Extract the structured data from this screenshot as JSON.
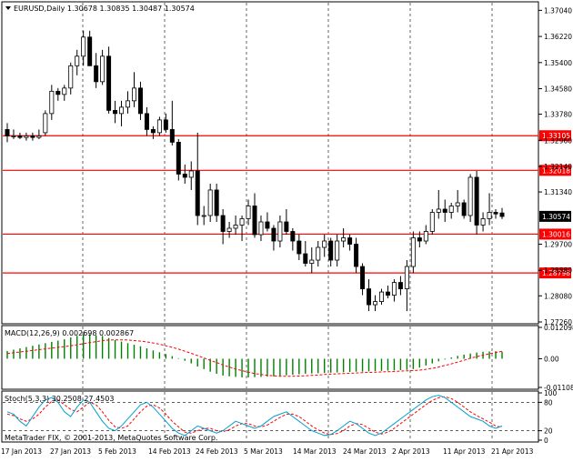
{
  "main": {
    "header": "EURUSD,Daily  1.30678 1.30835 1.30487 1.30574",
    "price_levels": [
      "1.37040",
      "1.36220",
      "1.35400",
      "1.34580",
      "1.33780",
      "1.32960",
      "1.32140",
      "1.31340",
      "1.30574",
      "1.29700",
      "1.28880",
      "1.28080",
      "1.27260"
    ],
    "h_lines": [
      "1.33105",
      "1.32018",
      "1.30016",
      "1.28798"
    ],
    "current_price": "1.30574",
    "colors": {
      "hline": "#ff0000",
      "candle": "#000000",
      "grid": "#000000"
    }
  },
  "macd": {
    "label": "MACD(12,26,9) 0.002698 0.002867",
    "levels": [
      "0.012098",
      "0.00",
      "-0.011082"
    ],
    "colors": {
      "histogram": "#008000",
      "signal": "#ff0000"
    }
  },
  "stoch": {
    "label": "Stoch(5,3,3) 30.2508 27.4503",
    "levels": [
      "100",
      "80",
      "20",
      "0"
    ],
    "colors": {
      "main": "#00a0d0",
      "signal": "#ff0000"
    }
  },
  "footer": {
    "copyright": "MetaTrader FIX, © 2001-2013, MetaQuotes Software Corp."
  },
  "dates": [
    "17 Jan 2013",
    "27 Jan 2013",
    "5 Feb 2013",
    "14 Feb 2013",
    "24 Feb 2013",
    "5 Mar 2013",
    "14 Mar 2013",
    "24 Mar 2013",
    "2 Apr 2013",
    "11 Apr 2013",
    "21 Apr 2013"
  ],
  "chart_data": {
    "type": "candlestick",
    "candles": [
      {
        "o": 1.333,
        "h": 1.335,
        "l": 1.329,
        "c": 1.331
      },
      {
        "o": 1.331,
        "h": 1.333,
        "l": 1.33,
        "c": 1.331
      },
      {
        "o": 1.331,
        "h": 1.332,
        "l": 1.33,
        "c": 1.3305
      },
      {
        "o": 1.3305,
        "h": 1.332,
        "l": 1.3295,
        "c": 1.331
      },
      {
        "o": 1.331,
        "h": 1.332,
        "l": 1.3295,
        "c": 1.3305
      },
      {
        "o": 1.3305,
        "h": 1.333,
        "l": 1.33,
        "c": 1.331
      },
      {
        "o": 1.332,
        "h": 1.339,
        "l": 1.331,
        "c": 1.338
      },
      {
        "o": 1.338,
        "h": 1.347,
        "l": 1.336,
        "c": 1.345
      },
      {
        "o": 1.345,
        "h": 1.346,
        "l": 1.342,
        "c": 1.344
      },
      {
        "o": 1.344,
        "h": 1.347,
        "l": 1.342,
        "c": 1.346
      },
      {
        "o": 1.346,
        "h": 1.354,
        "l": 1.344,
        "c": 1.353
      },
      {
        "o": 1.353,
        "h": 1.358,
        "l": 1.35,
        "c": 1.356
      },
      {
        "o": 1.356,
        "h": 1.364,
        "l": 1.353,
        "c": 1.362
      },
      {
        "o": 1.362,
        "h": 1.364,
        "l": 1.353,
        "c": 1.353
      },
      {
        "o": 1.353,
        "h": 1.357,
        "l": 1.346,
        "c": 1.348
      },
      {
        "o": 1.348,
        "h": 1.358,
        "l": 1.347,
        "c": 1.356
      },
      {
        "o": 1.356,
        "h": 1.359,
        "l": 1.338,
        "c": 1.339
      },
      {
        "o": 1.339,
        "h": 1.342,
        "l": 1.335,
        "c": 1.338
      },
      {
        "o": 1.338,
        "h": 1.342,
        "l": 1.334,
        "c": 1.34
      },
      {
        "o": 1.34,
        "h": 1.345,
        "l": 1.338,
        "c": 1.342
      },
      {
        "o": 1.342,
        "h": 1.351,
        "l": 1.34,
        "c": 1.346
      },
      {
        "o": 1.346,
        "h": 1.348,
        "l": 1.336,
        "c": 1.338
      },
      {
        "o": 1.338,
        "h": 1.34,
        "l": 1.331,
        "c": 1.333
      },
      {
        "o": 1.333,
        "h": 1.334,
        "l": 1.33,
        "c": 1.332
      },
      {
        "o": 1.332,
        "h": 1.337,
        "l": 1.331,
        "c": 1.336
      },
      {
        "o": 1.336,
        "h": 1.338,
        "l": 1.332,
        "c": 1.333
      },
      {
        "o": 1.333,
        "h": 1.342,
        "l": 1.328,
        "c": 1.329
      },
      {
        "o": 1.329,
        "h": 1.33,
        "l": 1.317,
        "c": 1.319
      },
      {
        "o": 1.319,
        "h": 1.322,
        "l": 1.316,
        "c": 1.318
      },
      {
        "o": 1.318,
        "h": 1.323,
        "l": 1.314,
        "c": 1.32
      },
      {
        "o": 1.32,
        "h": 1.332,
        "l": 1.303,
        "c": 1.306
      },
      {
        "o": 1.306,
        "h": 1.309,
        "l": 1.303,
        "c": 1.306
      },
      {
        "o": 1.306,
        "h": 1.316,
        "l": 1.304,
        "c": 1.314
      },
      {
        "o": 1.314,
        "h": 1.316,
        "l": 1.304,
        "c": 1.306
      },
      {
        "o": 1.306,
        "h": 1.308,
        "l": 1.297,
        "c": 1.301
      },
      {
        "o": 1.301,
        "h": 1.304,
        "l": 1.299,
        "c": 1.302
      },
      {
        "o": 1.302,
        "h": 1.306,
        "l": 1.3,
        "c": 1.303
      },
      {
        "o": 1.303,
        "h": 1.306,
        "l": 1.298,
        "c": 1.305
      },
      {
        "o": 1.305,
        "h": 1.311,
        "l": 1.303,
        "c": 1.309
      },
      {
        "o": 1.309,
        "h": 1.313,
        "l": 1.299,
        "c": 1.3
      },
      {
        "o": 1.3,
        "h": 1.306,
        "l": 1.298,
        "c": 1.304
      },
      {
        "o": 1.304,
        "h": 1.307,
        "l": 1.301,
        "c": 1.302
      },
      {
        "o": 1.302,
        "h": 1.303,
        "l": 1.295,
        "c": 1.298
      },
      {
        "o": 1.298,
        "h": 1.306,
        "l": 1.296,
        "c": 1.304
      },
      {
        "o": 1.304,
        "h": 1.308,
        "l": 1.3,
        "c": 1.301
      },
      {
        "o": 1.301,
        "h": 1.302,
        "l": 1.295,
        "c": 1.298
      },
      {
        "o": 1.298,
        "h": 1.3,
        "l": 1.292,
        "c": 1.294
      },
      {
        "o": 1.294,
        "h": 1.298,
        "l": 1.29,
        "c": 1.291
      },
      {
        "o": 1.291,
        "h": 1.296,
        "l": 1.288,
        "c": 1.292
      },
      {
        "o": 1.292,
        "h": 1.298,
        "l": 1.29,
        "c": 1.296
      },
      {
        "o": 1.296,
        "h": 1.3,
        "l": 1.293,
        "c": 1.298
      },
      {
        "o": 1.298,
        "h": 1.299,
        "l": 1.29,
        "c": 1.292
      },
      {
        "o": 1.292,
        "h": 1.3,
        "l": 1.29,
        "c": 1.298
      },
      {
        "o": 1.298,
        "h": 1.302,
        "l": 1.296,
        "c": 1.299
      },
      {
        "o": 1.299,
        "h": 1.3,
        "l": 1.295,
        "c": 1.297
      },
      {
        "o": 1.297,
        "h": 1.299,
        "l": 1.288,
        "c": 1.29
      },
      {
        "o": 1.29,
        "h": 1.291,
        "l": 1.281,
        "c": 1.283
      },
      {
        "o": 1.283,
        "h": 1.286,
        "l": 1.276,
        "c": 1.278
      },
      {
        "o": 1.278,
        "h": 1.281,
        "l": 1.276,
        "c": 1.279
      },
      {
        "o": 1.279,
        "h": 1.283,
        "l": 1.278,
        "c": 1.282
      },
      {
        "o": 1.282,
        "h": 1.284,
        "l": 1.28,
        "c": 1.281
      },
      {
        "o": 1.281,
        "h": 1.286,
        "l": 1.279,
        "c": 1.285
      },
      {
        "o": 1.285,
        "h": 1.287,
        "l": 1.281,
        "c": 1.283
      },
      {
        "o": 1.283,
        "h": 1.292,
        "l": 1.276,
        "c": 1.29
      },
      {
        "o": 1.29,
        "h": 1.301,
        "l": 1.288,
        "c": 1.299
      },
      {
        "o": 1.299,
        "h": 1.301,
        "l": 1.296,
        "c": 1.298
      },
      {
        "o": 1.298,
        "h": 1.303,
        "l": 1.297,
        "c": 1.301
      },
      {
        "o": 1.301,
        "h": 1.308,
        "l": 1.3,
        "c": 1.307
      },
      {
        "o": 1.307,
        "h": 1.314,
        "l": 1.305,
        "c": 1.308
      },
      {
        "o": 1.308,
        "h": 1.311,
        "l": 1.304,
        "c": 1.307
      },
      {
        "o": 1.307,
        "h": 1.31,
        "l": 1.305,
        "c": 1.309
      },
      {
        "o": 1.309,
        "h": 1.314,
        "l": 1.307,
        "c": 1.31
      },
      {
        "o": 1.31,
        "h": 1.311,
        "l": 1.305,
        "c": 1.306
      },
      {
        "o": 1.306,
        "h": 1.319,
        "l": 1.304,
        "c": 1.318
      },
      {
        "o": 1.318,
        "h": 1.32,
        "l": 1.3,
        "c": 1.303
      },
      {
        "o": 1.303,
        "h": 1.307,
        "l": 1.301,
        "c": 1.305
      },
      {
        "o": 1.305,
        "h": 1.313,
        "l": 1.303,
        "c": 1.307
      },
      {
        "o": 1.307,
        "h": 1.308,
        "l": 1.305,
        "c": 1.3065
      },
      {
        "o": 1.3068,
        "h": 1.3084,
        "l": 1.3049,
        "c": 1.3057
      }
    ],
    "y_range": [
      1.2726,
      1.3725
    ],
    "macd_hist": [
      0.003,
      0.0035,
      0.004,
      0.0045,
      0.005,
      0.0055,
      0.006,
      0.0065,
      0.007,
      0.0075,
      0.0082,
      0.0088,
      0.0094,
      0.0095,
      0.009,
      0.0088,
      0.008,
      0.0072,
      0.0066,
      0.006,
      0.0054,
      0.0048,
      0.004,
      0.0032,
      0.0025,
      0.0018,
      0.001,
      0.0002,
      -0.0008,
      -0.0018,
      -0.003,
      -0.004,
      -0.005,
      -0.0058,
      -0.0065,
      -0.0068,
      -0.007,
      -0.0072,
      -0.0072,
      -0.0071,
      -0.007,
      -0.0069,
      -0.0068,
      -0.0066,
      -0.0064,
      -0.0062,
      -0.006,
      -0.0058,
      -0.0057,
      -0.0056,
      -0.0055,
      -0.0054,
      -0.0053,
      -0.0052,
      -0.0051,
      -0.005,
      -0.005,
      -0.0049,
      -0.0048,
      -0.0047,
      -0.0046,
      -0.0045,
      -0.0044,
      -0.0043,
      -0.004,
      -0.0034,
      -0.0026,
      -0.0018,
      -0.001,
      -0.0003,
      0.0005,
      0.0011,
      0.0016,
      0.002,
      0.0024,
      0.0027,
      0.0028,
      0.0029,
      0.0027
    ],
    "macd_signal": [
      0.002,
      0.0023,
      0.0026,
      0.0029,
      0.0032,
      0.0035,
      0.0038,
      0.0041,
      0.0044,
      0.0047,
      0.005,
      0.0054,
      0.0058,
      0.0062,
      0.0066,
      0.007,
      0.0072,
      0.0073,
      0.0073,
      0.0072,
      0.007,
      0.0068,
      0.0065,
      0.0061,
      0.0056,
      0.005,
      0.0044,
      0.0037,
      0.0029,
      0.0021,
      0.0012,
      0.0003,
      -0.0006,
      -0.0015,
      -0.0024,
      -0.0032,
      -0.004,
      -0.0046,
      -0.0052,
      -0.0057,
      -0.0061,
      -0.0064,
      -0.0066,
      -0.0068,
      -0.0068,
      -0.0068,
      -0.0067,
      -0.0066,
      -0.0064,
      -0.0063,
      -0.0061,
      -0.006,
      -0.0058,
      -0.0057,
      -0.0056,
      -0.0055,
      -0.0054,
      -0.0053,
      -0.0052,
      -0.0051,
      -0.005,
      -0.0049,
      -0.0048,
      -0.0047,
      -0.0046,
      -0.0044,
      -0.0041,
      -0.0037,
      -0.0032,
      -0.0026,
      -0.002,
      -0.0013,
      -0.0006,
      0.0002,
      0.0008,
      0.0014,
      0.0019,
      0.0024,
      0.0029
    ],
    "macd_range": [
      -0.011082,
      0.012098
    ],
    "stoch_main": [
      60,
      55,
      40,
      30,
      50,
      70,
      85,
      90,
      80,
      60,
      50,
      70,
      85,
      80,
      60,
      40,
      25,
      20,
      30,
      45,
      60,
      75,
      80,
      70,
      55,
      40,
      25,
      15,
      10,
      20,
      30,
      25,
      20,
      15,
      20,
      30,
      40,
      35,
      30,
      25,
      30,
      40,
      50,
      55,
      60,
      50,
      40,
      30,
      20,
      15,
      10,
      12,
      20,
      30,
      40,
      35,
      25,
      15,
      10,
      15,
      25,
      35,
      45,
      55,
      65,
      75,
      85,
      92,
      95,
      90,
      80,
      70,
      60,
      50,
      45,
      40,
      30,
      25,
      30
    ],
    "stoch_signal": [
      55,
      52,
      45,
      40,
      45,
      55,
      70,
      82,
      85,
      75,
      65,
      60,
      70,
      80,
      75,
      60,
      42,
      28,
      25,
      30,
      45,
      60,
      72,
      75,
      68,
      55,
      40,
      28,
      17,
      15,
      20,
      25,
      25,
      20,
      18,
      22,
      30,
      35,
      35,
      30,
      28,
      32,
      40,
      48,
      55,
      55,
      50,
      40,
      30,
      22,
      15,
      12,
      14,
      20,
      30,
      35,
      33,
      25,
      17,
      13,
      17,
      25,
      35,
      45,
      55,
      65,
      75,
      84,
      90,
      92,
      88,
      80,
      70,
      60,
      52,
      45,
      38,
      30,
      27
    ],
    "stoch_range": [
      0,
      100
    ]
  }
}
